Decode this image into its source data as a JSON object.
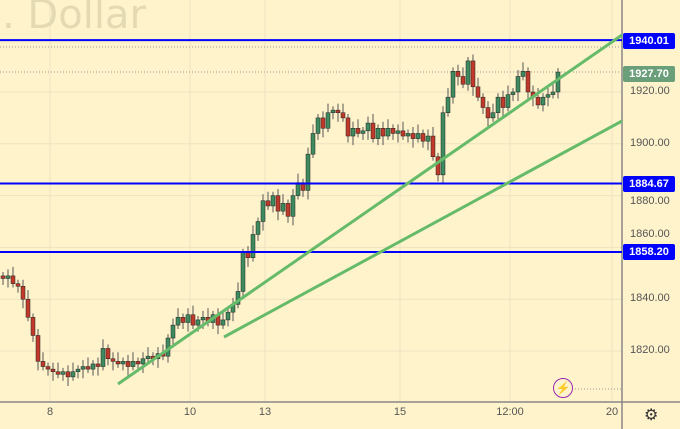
{
  "watermark": ". Dollar",
  "chart_data": {
    "type": "candlestick",
    "x_ticks": [
      "8",
      "10",
      "13",
      "15",
      "12:00",
      "20"
    ],
    "y_ticks": [
      "1920.00",
      "1900.00",
      "1880.00",
      "1860.00",
      "1840.00",
      "1820.00"
    ],
    "ylim": [
      1805,
      1955
    ],
    "grid": true,
    "close": [
      1848,
      1849,
      1846,
      1845,
      1840,
      1833,
      1826,
      1816,
      1814,
      1813,
      1812,
      1811,
      1812,
      1810,
      1812,
      1813,
      1814,
      1813,
      1815,
      1814,
      1821,
      1817,
      1816,
      1815,
      1816,
      1814,
      1816,
      1815,
      1817,
      1818,
      1817,
      1819,
      1818,
      1825,
      1830,
      1833,
      1831,
      1834,
      1830,
      1832,
      1833,
      1831,
      1834,
      1830,
      1832,
      1835,
      1838,
      1843,
      1858,
      1856,
      1865,
      1870,
      1878,
      1876,
      1880,
      1874,
      1877,
      1872,
      1880,
      1885,
      1882,
      1896,
      1904,
      1910,
      1906,
      1912,
      1913,
      1912,
      1910,
      1903,
      1906,
      1904,
      1905,
      1908,
      1902,
      1906,
      1903,
      1906,
      1904,
      1905,
      1903,
      1904,
      1902,
      1904,
      1901,
      1903,
      1895,
      1888,
      1912,
      1918,
      1928,
      1926,
      1923,
      1932,
      1922,
      1918,
      1914,
      1910,
      1912,
      1918,
      1914,
      1919,
      1920,
      1926,
      1928,
      1920,
      1918,
      1915,
      1918,
      1919,
      1920,
      1927.7
    ],
    "horizontal_levels": [
      {
        "label": "1940.01",
        "value": 1940.01,
        "color": "#0000ff"
      },
      {
        "label": "1884.67",
        "value": 1884.67,
        "color": "#0000ff"
      },
      {
        "label": "1858.20",
        "value": 1858.2,
        "color": "#0000ff"
      }
    ],
    "last_price": {
      "label": "1927.70",
      "value": 1927.7,
      "color": "#6a9f7a"
    },
    "trendline_color": "#66bb6a",
    "up_color": "#3d8b5e",
    "down_color": "#c0392b"
  },
  "icons": {
    "settings": "gear-icon",
    "alert": "lightning-icon"
  }
}
